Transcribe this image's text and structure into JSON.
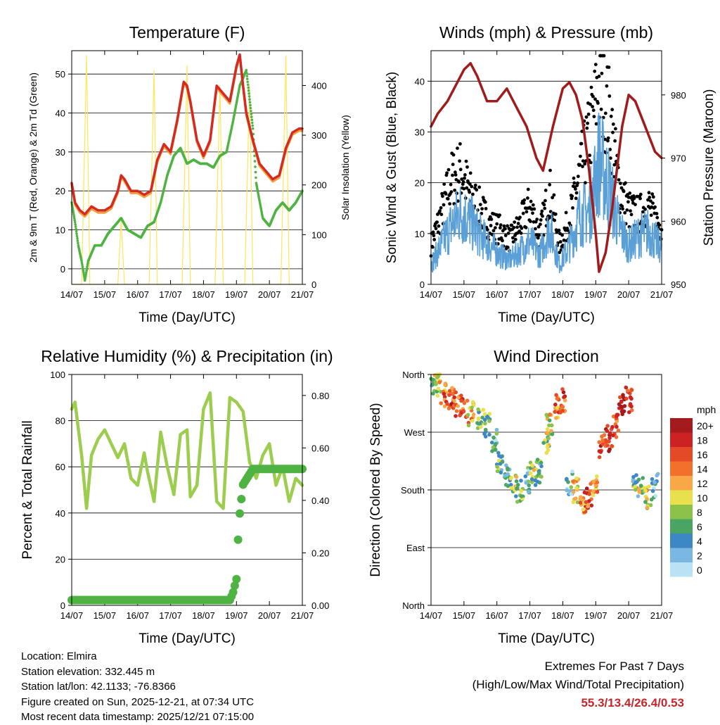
{
  "footer": {
    "location": "Location: Elmira",
    "elevation": "Station elevation: 332.445 m",
    "latlon": "Station lat/lon: 42.1133; -76.8366",
    "created": "Figure created on Sun, 2025-12-21, at 07:34 UTC",
    "recent": "Most recent data timestamp: 2025/12/21 07:15:00"
  },
  "extremes": {
    "title": "Extremes For Past 7 Days",
    "subtitle": "(High/Low/Max Wind/Total Precipitation)",
    "values": "55.3/13.4/26.4/0.53"
  },
  "colors": {
    "temp_2m": "#d42a22",
    "temp_9m": "#f0a040",
    "dewpoint": "#4eb342",
    "solar": "#ffe55c",
    "sonic": "#5a9fd6",
    "gust": "#000000",
    "pressure": "#a01c1c",
    "rh": "#9ccd4e",
    "precip": "#4eb342"
  },
  "chart_data": [
    {
      "id": "temperature",
      "type": "line",
      "title": "Temperature (F)",
      "xlabel": "Time (Day/UTC)",
      "ylabel": "2m & 9m T (Red, Orange) & 2m Td (Green)",
      "ylabel_right": "Solar Insolation (Yellow)",
      "x_ticks": [
        "14/07",
        "15/07",
        "16/07",
        "17/07",
        "18/07",
        "19/07",
        "20/07",
        "21/07"
      ],
      "xlim": [
        0,
        7
      ],
      "ylim": [
        -4,
        56
      ],
      "y_ticks": [
        0,
        10,
        20,
        30,
        40,
        50
      ],
      "ylim_right": [
        0,
        470
      ],
      "y_ticks_right": [
        0,
        100,
        200,
        300,
        400
      ],
      "series": [
        {
          "name": "2m T",
          "x": [
            0,
            0.1,
            0.25,
            0.4,
            0.6,
            0.8,
            1.0,
            1.2,
            1.4,
            1.5,
            1.6,
            1.8,
            2.0,
            2.2,
            2.4,
            2.6,
            2.8,
            3.0,
            3.2,
            3.4,
            3.5,
            3.6,
            3.8,
            4.0,
            4.2,
            4.4,
            4.6,
            4.8,
            5.0,
            5.1,
            5.2,
            5.3,
            5.5,
            5.7,
            5.9,
            6.1,
            6.3,
            6.5,
            6.7,
            6.9,
            7.0
          ],
          "values": [
            22,
            17,
            15,
            14,
            16,
            15,
            15,
            16,
            20,
            24,
            23,
            20,
            20,
            19,
            20,
            28,
            32,
            30,
            38,
            48,
            47,
            43,
            33,
            29,
            33,
            47,
            45,
            43,
            52,
            55,
            47,
            40,
            33,
            27,
            25,
            23,
            24,
            31,
            35,
            36,
            36
          ]
        },
        {
          "name": "2m Td",
          "x": [
            0,
            0.1,
            0.2,
            0.3,
            0.4,
            0.5,
            0.7,
            0.9,
            1.1,
            1.3,
            1.5,
            1.7,
            1.9,
            2.1,
            2.3,
            2.5,
            2.7,
            2.9,
            3.1,
            3.3,
            3.5,
            3.7,
            3.9,
            4.1,
            4.3,
            4.5,
            4.7,
            4.9,
            5.1,
            5.3,
            5.5,
            5.6,
            5.8,
            6.0,
            6.2,
            6.4,
            6.6,
            6.8,
            7.0
          ],
          "values": [
            17,
            12,
            6,
            2,
            -3,
            2,
            6,
            6,
            9,
            11,
            13,
            10,
            9,
            8,
            11,
            12,
            17,
            24,
            29,
            31,
            27,
            28,
            27,
            27,
            26,
            29,
            30,
            38,
            47,
            51,
            36,
            22,
            13,
            11,
            15,
            17,
            15,
            17,
            20
          ]
        },
        {
          "name": "Solar",
          "x": [
            0,
            0.3,
            0.45,
            0.55,
            0.7,
            1.0,
            1.4,
            1.5,
            1.6,
            1.9,
            2.35,
            2.5,
            2.6,
            2.9,
            3.35,
            3.5,
            3.6,
            3.9,
            4.35,
            4.5,
            4.6,
            4.9,
            5.25,
            5.4,
            5.5,
            5.8,
            6.35,
            6.5,
            6.6,
            7.0
          ],
          "values": [
            0,
            0,
            460,
            0,
            0,
            0,
            0,
            130,
            0,
            0,
            0,
            430,
            0,
            0,
            0,
            440,
            0,
            0,
            0,
            400,
            0,
            0,
            0,
            400,
            0,
            0,
            0,
            460,
            0,
            0
          ]
        }
      ]
    },
    {
      "id": "winds",
      "type": "scatter",
      "title": "Winds (mph) & Pressure (mb)",
      "xlabel": "Time (Day/UTC)",
      "ylabel": "Sonic Wind & Gust (Blue, Black)",
      "ylabel_right": "Station Pressure (Maroon)",
      "x_ticks": [
        "14/07",
        "15/07",
        "16/07",
        "17/07",
        "18/07",
        "19/07",
        "20/07",
        "21/07"
      ],
      "xlim": [
        0,
        7
      ],
      "ylim": [
        0,
        46
      ],
      "y_ticks": [
        0,
        10,
        20,
        30,
        40
      ],
      "ylim_right": [
        950,
        987
      ],
      "y_ticks_right": [
        950,
        960,
        970,
        980
      ],
      "series": [
        {
          "name": "Sonic",
          "x": [
            0,
            0.3,
            0.6,
            0.9,
            1.2,
            1.5,
            1.8,
            2.1,
            2.4,
            2.7,
            3.0,
            3.3,
            3.6,
            3.9,
            4.2,
            4.5,
            4.8,
            5.1,
            5.4,
            5.7,
            6.0,
            6.3,
            6.6,
            6.9
          ],
          "values": [
            4,
            8,
            12,
            15,
            13,
            10,
            8,
            6,
            5,
            7,
            9,
            6,
            12,
            4,
            8,
            14,
            15,
            26,
            20,
            12,
            8,
            10,
            11,
            8
          ]
        },
        {
          "name": "Gust",
          "x": [
            0,
            0.3,
            0.6,
            0.9,
            1.2,
            1.5,
            1.8,
            2.1,
            2.4,
            2.7,
            3.0,
            3.3,
            3.6,
            3.9,
            4.2,
            4.5,
            4.8,
            5.1,
            5.4,
            5.7,
            6.0,
            6.3,
            6.6,
            6.9
          ],
          "values": [
            8,
            14,
            21,
            23,
            18,
            15,
            12,
            11,
            9,
            12,
            16,
            10,
            19,
            8,
            13,
            22,
            30,
            40,
            35,
            20,
            15,
            14,
            16,
            12
          ]
        },
        {
          "name": "Pressure",
          "x": [
            0,
            0.2,
            0.5,
            0.8,
            1.0,
            1.2,
            1.4,
            1.7,
            2.0,
            2.3,
            2.6,
            2.9,
            3.2,
            3.4,
            3.7,
            4.0,
            4.2,
            4.4,
            4.6,
            4.8,
            5.0,
            5.1,
            5.3,
            5.5,
            5.8,
            6.0,
            6.2,
            6.5,
            6.8,
            7.0
          ],
          "values": [
            975,
            977,
            979,
            982,
            984,
            985,
            983,
            979,
            979,
            981,
            978,
            975,
            970,
            968,
            975,
            981,
            982,
            980,
            976,
            968,
            958,
            952,
            955,
            962,
            975,
            980,
            979,
            975,
            971,
            970
          ]
        }
      ]
    },
    {
      "id": "humidity",
      "type": "line",
      "title": "Relative Humidity (%) & Precipitation (in)",
      "xlabel": "Time (Day/UTC)",
      "ylabel": "Percent & Total Rainfall",
      "x_ticks": [
        "14/07",
        "15/07",
        "16/07",
        "17/07",
        "18/07",
        "19/07",
        "20/07",
        "21/07"
      ],
      "xlim": [
        0,
        7
      ],
      "ylim": [
        0,
        100
      ],
      "y_ticks": [
        0,
        20,
        40,
        60,
        80,
        100
      ],
      "ylim_right": [
        0,
        0.88
      ],
      "y_ticks_right": [
        "0.00",
        "0.20",
        "0.40",
        "0.60",
        "0.80"
      ],
      "series": [
        {
          "name": "RH",
          "x": [
            0,
            0.1,
            0.3,
            0.45,
            0.6,
            0.8,
            1.0,
            1.2,
            1.4,
            1.6,
            1.8,
            2.0,
            2.2,
            2.3,
            2.5,
            2.7,
            2.9,
            3.1,
            3.3,
            3.5,
            3.6,
            3.8,
            4.0,
            4.2,
            4.4,
            4.6,
            4.8,
            5.0,
            5.2,
            5.4,
            5.6,
            5.8,
            6.0,
            6.2,
            6.4,
            6.6,
            6.8,
            7.0
          ],
          "values": [
            85,
            88,
            65,
            42,
            65,
            72,
            76,
            70,
            64,
            70,
            55,
            52,
            66,
            58,
            45,
            75,
            60,
            48,
            74,
            76,
            47,
            52,
            85,
            92,
            45,
            42,
            90,
            88,
            84,
            62,
            55,
            65,
            70,
            52,
            60,
            45,
            55,
            52
          ]
        },
        {
          "name": "Precip",
          "x": [
            0,
            4.8,
            4.9,
            5.0,
            5.05,
            5.1,
            5.2,
            5.3,
            5.4,
            5.5,
            6.0,
            7.0
          ],
          "values": [
            0.02,
            0.02,
            0.05,
            0.1,
            0.25,
            0.35,
            0.46,
            0.48,
            0.5,
            0.52,
            0.52,
            0.52
          ]
        }
      ]
    },
    {
      "id": "direction",
      "type": "scatter",
      "title": "Wind Direction",
      "xlabel": "Time (Day/UTC)",
      "ylabel": "Direction (Colored By Speed)",
      "x_ticks": [
        "14/07",
        "15/07",
        "16/07",
        "17/07",
        "18/07",
        "19/07",
        "20/07",
        "21/07"
      ],
      "xlim": [
        0,
        7
      ],
      "ylim": [
        0,
        360
      ],
      "y_ticks": [
        "North",
        "East",
        "South",
        "West",
        "North"
      ],
      "legend_title": "mph",
      "legend_labels": [
        "20+",
        "18",
        "16",
        "14",
        "12",
        "10",
        "8",
        "6",
        "4",
        "2",
        "0"
      ],
      "legend_colors": [
        "#a31b1d",
        "#cd2224",
        "#e44a25",
        "#f26f2c",
        "#f9a848",
        "#e8e04d",
        "#8bc34a",
        "#4aa565",
        "#3e87c5",
        "#7ab7e3",
        "#b9e2f5"
      ],
      "x": [
        0.05,
        0.2,
        0.4,
        0.6,
        0.8,
        1.0,
        1.2,
        1.5,
        1.7,
        1.9,
        2.1,
        2.3,
        2.5,
        2.7,
        2.9,
        3.1,
        3.3,
        3.5,
        3.6,
        3.8,
        4.0,
        4.2,
        4.4,
        4.6,
        4.8,
        5.0,
        5.2,
        5.4,
        5.6,
        5.8,
        6.0,
        6.2,
        6.4,
        6.6,
        6.8
      ],
      "values": [
        350,
        345,
        330,
        322,
        315,
        310,
        300,
        295,
        280,
        260,
        220,
        200,
        185,
        180,
        195,
        205,
        210,
        250,
        280,
        310,
        320,
        190,
        180,
        160,
        170,
        190,
        250,
        260,
        280,
        310,
        320,
        190,
        180,
        170,
        185
      ],
      "speeds": [
        6,
        10,
        14,
        16,
        15,
        14,
        12,
        8,
        6,
        4,
        6,
        4,
        8,
        6,
        4,
        8,
        6,
        8,
        10,
        14,
        16,
        4,
        10,
        14,
        16,
        12,
        16,
        18,
        14,
        20,
        16,
        6,
        8,
        10,
        4
      ]
    }
  ]
}
